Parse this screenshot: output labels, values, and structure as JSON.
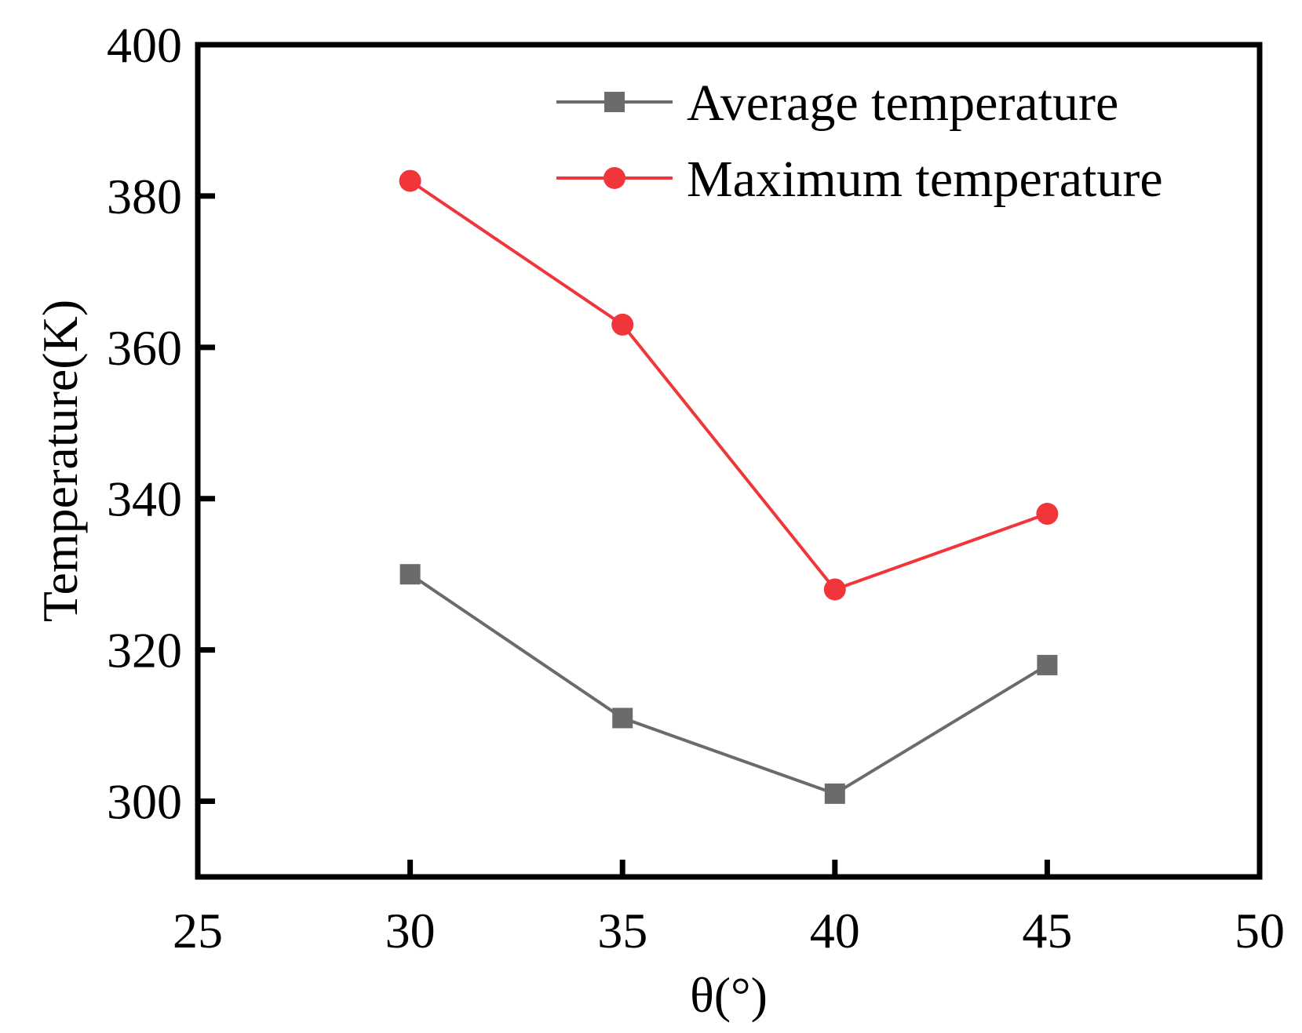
{
  "chart_data": {
    "type": "line",
    "title": "",
    "xlabel": "θ(°)",
    "ylabel": "Temperature(K)",
    "xlim": [
      25,
      50
    ],
    "ylim": [
      290,
      400
    ],
    "x_ticks": [
      25,
      30,
      35,
      40,
      45,
      50
    ],
    "y_ticks": [
      300,
      320,
      340,
      360,
      380,
      400
    ],
    "x_tick_labels": [
      "25",
      "30",
      "35",
      "40",
      "45",
      "50"
    ],
    "y_tick_labels": [
      "300",
      "320",
      "340",
      "360",
      "380",
      "400"
    ],
    "x": [
      30,
      35,
      40,
      45
    ],
    "legend_position": "top-right",
    "grid": false,
    "series": [
      {
        "name": "Average temperature",
        "values": [
          330,
          311,
          301,
          318
        ],
        "color": "#6b6b6b",
        "marker": "square"
      },
      {
        "name": "Maximum temperature",
        "values": [
          382,
          363,
          328,
          338
        ],
        "color": "#f0353b",
        "marker": "circle"
      }
    ]
  }
}
